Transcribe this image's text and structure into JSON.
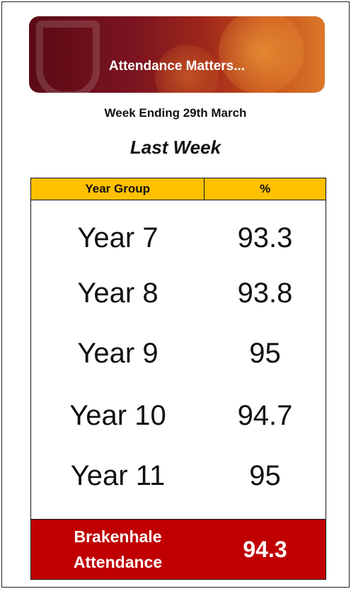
{
  "header": {
    "title": "Attendance Matters...",
    "subtitle": "Week Ending 29th March",
    "heading": "Last Week"
  },
  "table": {
    "columns": [
      "Year Group",
      "%"
    ],
    "rows": [
      [
        "Year 7",
        "93.3"
      ],
      [
        "Year 8",
        "93.8"
      ],
      [
        "Year 9",
        "95"
      ],
      [
        "Year 10",
        "94.7"
      ],
      [
        "Year 11",
        "95"
      ]
    ],
    "total": {
      "label": [
        "Brakenhale",
        "Attendance"
      ],
      "value": "94.3"
    }
  }
}
